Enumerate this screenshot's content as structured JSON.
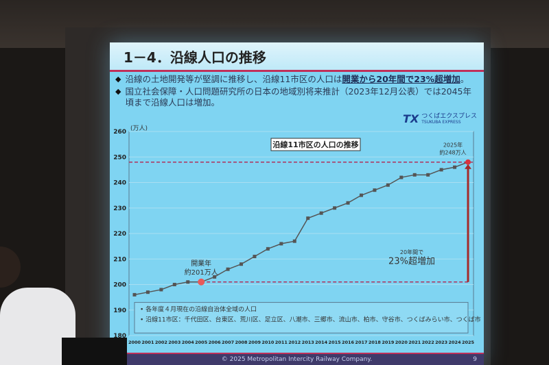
{
  "slide": {
    "title": "1－4．沿線人口の推移",
    "bullets": [
      {
        "text": "沿線の土地開発等が堅調に推移し、沿線11市区の人口は",
        "highlight": "開業から20年間で23%超増加",
        "tail": "。"
      },
      {
        "text": "国立社会保障・人口問題研究所の日本の地域別将来推計（2023年12月公表）では2045年頃まで沿線人口は増加。",
        "highlight": "",
        "tail": ""
      }
    ],
    "logo": {
      "mark": "TX",
      "jp": "つくばエクスプレス",
      "en": "TSUKUBA EXPRESS"
    },
    "footer": "© 2025 Metropolitan Intercity Railway Company.",
    "page_number": "9"
  },
  "colors": {
    "background": "#7fd4f2",
    "line": "#555555",
    "accent": "#d9343f",
    "dashed": "#b0305a",
    "arrow": "#a52a2a"
  },
  "chart_data": {
    "type": "line",
    "title": "沿線11市区の人口の推移",
    "ylabel": "(万人)",
    "ylim": [
      180,
      260
    ],
    "yticks": [
      180,
      190,
      200,
      210,
      220,
      230,
      240,
      250,
      260
    ],
    "x": [
      2000,
      2001,
      2002,
      2003,
      2004,
      2005,
      2006,
      2007,
      2008,
      2009,
      2010,
      2011,
      2012,
      2013,
      2014,
      2015,
      2016,
      2017,
      2018,
      2019,
      2020,
      2021,
      2022,
      2023,
      2024,
      2025
    ],
    "values": [
      196,
      197,
      198,
      200,
      201,
      201,
      203,
      206,
      208,
      211,
      214,
      216,
      217,
      226,
      228,
      230,
      232,
      235,
      237,
      239,
      242,
      243,
      243,
      245,
      246,
      248
    ],
    "grid": true,
    "annotations": {
      "start": {
        "line1": "開業年",
        "line2": "約201万人",
        "year": 2005,
        "value": 201
      },
      "end": {
        "line1": "2025年",
        "line2": "約248万人",
        "year": 2025,
        "value": 248
      },
      "growth": {
        "line1": "20年間で",
        "line2": "23%超増加"
      }
    },
    "notes": [
      "各年度４月現在の沿線自治体全域の人口",
      "沿線11市区：千代田区、台東区、荒川区、足立区、八潮市、三郷市、流山市、柏市、守谷市、つくばみらい市、つくば市"
    ]
  }
}
